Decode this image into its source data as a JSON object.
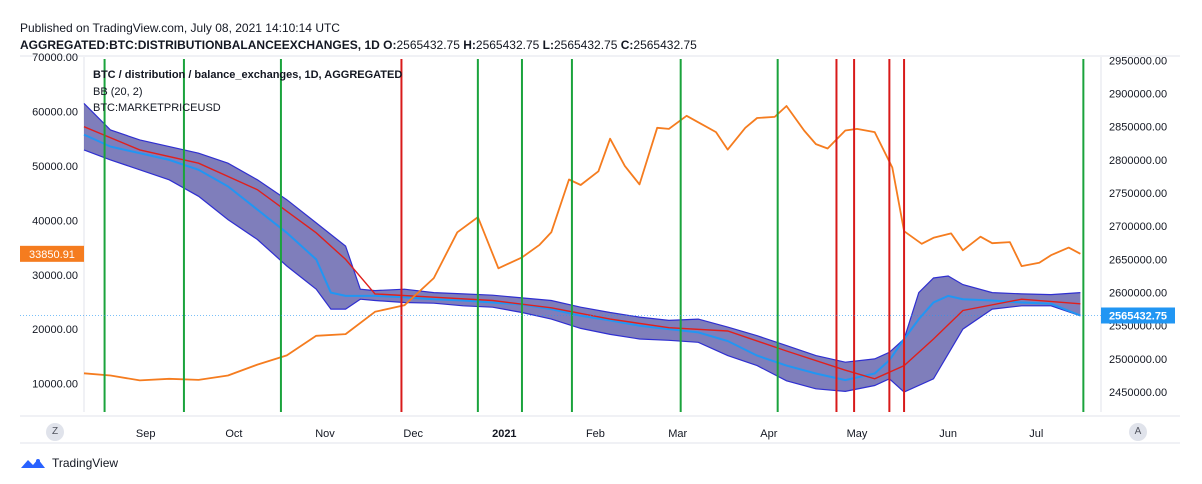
{
  "header": {
    "published": "Published on TradingView.com, July 08, 2021 14:10:14 UTC",
    "symbol": "AGGREGATED:BTC:DISTRIBUTIONBALANCEEXCHANGES, 1D",
    "o_label": "O:",
    "o_value": "2565432.75",
    "h_label": "H:",
    "h_value": "2565432.75",
    "l_label": "L:",
    "l_value": "2565432.75",
    "c_label": "C:",
    "c_value": "2565432.75"
  },
  "legend": {
    "series": "BTC / distribution / balance_exchanges, 1D, AGGREGATED",
    "indicator": "BB (20, 2)",
    "overlay": "BTC:MARKETPRICEUSD"
  },
  "buttons": {
    "zoom": "Z",
    "auto": "A"
  },
  "brand": {
    "name": "TradingView"
  },
  "colors": {
    "price": "#f57c1f",
    "balance": "#2196f3",
    "band_fill": "#5b5aa8",
    "band_edge": "#2f2fd0",
    "basis": "#e0201c",
    "buy_line": "#1aa33c",
    "sell_line": "#d81a1a",
    "left_badge": "#f57c1f",
    "right_badge": "#2196f3"
  },
  "chart_data": {
    "type": "line",
    "title": "BTC / distribution / balance_exchanges, 1D, AGGREGATED",
    "left_axis": {
      "label": "BTC:MARKETPRICEUSD",
      "range": [
        4800,
        70000
      ],
      "ticks": [
        "70000.00",
        "60000.00",
        "50000.00",
        "40000.00",
        "30000.00",
        "20000.00",
        "10000.00"
      ],
      "tick_values": [
        70000,
        60000,
        50000,
        40000,
        30000,
        20000,
        10000
      ],
      "current_label": "33850.91",
      "current_value": 33850.91
    },
    "right_axis": {
      "label": "distribution balance exchanges",
      "range": [
        2420000,
        2955000
      ],
      "ticks": [
        "2950000.00",
        "2900000.00",
        "2850000.00",
        "2800000.00",
        "2750000.00",
        "2700000.00",
        "2650000.00",
        "2600000.00",
        "2550000.00",
        "2500000.00",
        "2450000.00"
      ],
      "tick_values": [
        2950000,
        2900000,
        2850000,
        2800000,
        2750000,
        2700000,
        2650000,
        2600000,
        2550000,
        2500000,
        2450000
      ],
      "current_label": "2565432.75",
      "current_value": 2565432.75
    },
    "x_axis": {
      "labels": [
        "Sep",
        "Oct",
        "Nov",
        "Dec",
        "2021",
        "Feb",
        "Mar",
        "Apr",
        "May",
        "Jun",
        "Jul"
      ],
      "bold_label": "2021",
      "positions_days": [
        12,
        42,
        73,
        103,
        134,
        165,
        193,
        224,
        254,
        285,
        315
      ]
    },
    "x_range_days": [
      -9,
      337
    ],
    "price_usd": {
      "name": "BTC:MARKETPRICEUSD",
      "days": [
        -9,
        0,
        10,
        20,
        30,
        40,
        50,
        60,
        70,
        80,
        90,
        100,
        110,
        118,
        125,
        132,
        140,
        146,
        150,
        156,
        160,
        166,
        170,
        175,
        180,
        186,
        190,
        196,
        200,
        206,
        210,
        216,
        220,
        226,
        230,
        236,
        240,
        244,
        250,
        254,
        260,
        266,
        270,
        276,
        280,
        286,
        290,
        296,
        300,
        306,
        310,
        316,
        320,
        326,
        330
      ],
      "values": [
        11900,
        11500,
        10600,
        10900,
        10700,
        11500,
        13500,
        15200,
        18800,
        19100,
        23200,
        24400,
        29400,
        37800,
        40600,
        31200,
        33200,
        35500,
        37800,
        47500,
        46500,
        49000,
        55000,
        50000,
        46600,
        57000,
        56800,
        59200,
        58000,
        56200,
        53000,
        57000,
        58800,
        59000,
        61000,
        56500,
        54000,
        53200,
        56500,
        56800,
        56200,
        49700,
        38000,
        35700,
        36800,
        37600,
        34500,
        37000,
        35800,
        36000,
        31600,
        32200,
        33600,
        35000,
        33850.91
      ]
    },
    "balance_exchanges": {
      "name": "distribution balance exchanges",
      "days": [
        -9,
        0,
        10,
        20,
        30,
        40,
        50,
        60,
        70,
        75,
        80,
        90,
        100,
        110,
        120,
        130,
        140,
        150,
        160,
        170,
        180,
        190,
        200,
        210,
        220,
        230,
        240,
        250,
        260,
        265,
        270,
        275,
        280,
        285,
        290,
        300,
        310,
        320,
        330
      ],
      "values": [
        2838000,
        2820000,
        2810000,
        2800000,
        2785000,
        2760000,
        2725000,
        2690000,
        2650000,
        2600000,
        2595000,
        2595000,
        2593000,
        2590000,
        2588000,
        2585000,
        2582000,
        2575000,
        2565000,
        2558000,
        2550000,
        2545000,
        2540000,
        2527000,
        2505000,
        2490000,
        2478000,
        2468000,
        2478000,
        2498000,
        2530000,
        2560000,
        2585000,
        2595000,
        2590000,
        2588000,
        2585000,
        2583000,
        2565432.75
      ]
    },
    "bb_basis": {
      "name": "BB (20, 2) basis",
      "days": [
        -9,
        10,
        30,
        50,
        70,
        80,
        90,
        110,
        130,
        150,
        170,
        190,
        210,
        230,
        250,
        260,
        270,
        280,
        290,
        310,
        330
      ],
      "values": [
        2850000,
        2815000,
        2795000,
        2755000,
        2690000,
        2650000,
        2598000,
        2593000,
        2588000,
        2577000,
        2560000,
        2547000,
        2542000,
        2512000,
        2483000,
        2470000,
        2490000,
        2530000,
        2573000,
        2590000,
        2583000
      ]
    },
    "bb_upper": {
      "name": "BB upper",
      "days": [
        -9,
        0,
        10,
        20,
        30,
        40,
        50,
        60,
        70,
        80,
        85,
        90,
        100,
        110,
        120,
        130,
        140,
        150,
        160,
        170,
        180,
        190,
        200,
        210,
        220,
        230,
        240,
        250,
        260,
        265,
        270,
        275,
        280,
        285,
        290,
        300,
        310,
        320,
        330
      ],
      "values": [
        2885000,
        2845000,
        2830000,
        2820000,
        2810000,
        2795000,
        2770000,
        2740000,
        2705000,
        2670000,
        2605000,
        2603000,
        2605000,
        2600000,
        2598000,
        2596000,
        2592000,
        2588000,
        2578000,
        2570000,
        2563000,
        2558000,
        2560000,
        2548000,
        2535000,
        2520000,
        2505000,
        2495000,
        2500000,
        2510000,
        2530000,
        2600000,
        2622000,
        2625000,
        2612000,
        2600000,
        2598000,
        2597000,
        2600000
      ]
    },
    "bb_lower": {
      "name": "BB lower",
      "days": [
        -9,
        0,
        10,
        20,
        30,
        40,
        50,
        60,
        70,
        75,
        80,
        85,
        90,
        100,
        110,
        120,
        130,
        140,
        150,
        160,
        170,
        180,
        190,
        200,
        210,
        220,
        230,
        240,
        250,
        260,
        265,
        270,
        280,
        290,
        300,
        310,
        320,
        330
      ],
      "values": [
        2815000,
        2800000,
        2785000,
        2770000,
        2745000,
        2710000,
        2680000,
        2640000,
        2605000,
        2575000,
        2575000,
        2590000,
        2588000,
        2585000,
        2584000,
        2580000,
        2578000,
        2570000,
        2560000,
        2546000,
        2537000,
        2530000,
        2528000,
        2525000,
        2505000,
        2490000,
        2467000,
        2455000,
        2451000,
        2460000,
        2470000,
        2450000,
        2470000,
        2545000,
        2575000,
        2580000,
        2580000,
        2565000
      ]
    },
    "signals": {
      "buy_days": [
        -2,
        25,
        58,
        125,
        140,
        157,
        194,
        227,
        331
      ],
      "sell_days": [
        99,
        247,
        253,
        265,
        270
      ]
    }
  }
}
